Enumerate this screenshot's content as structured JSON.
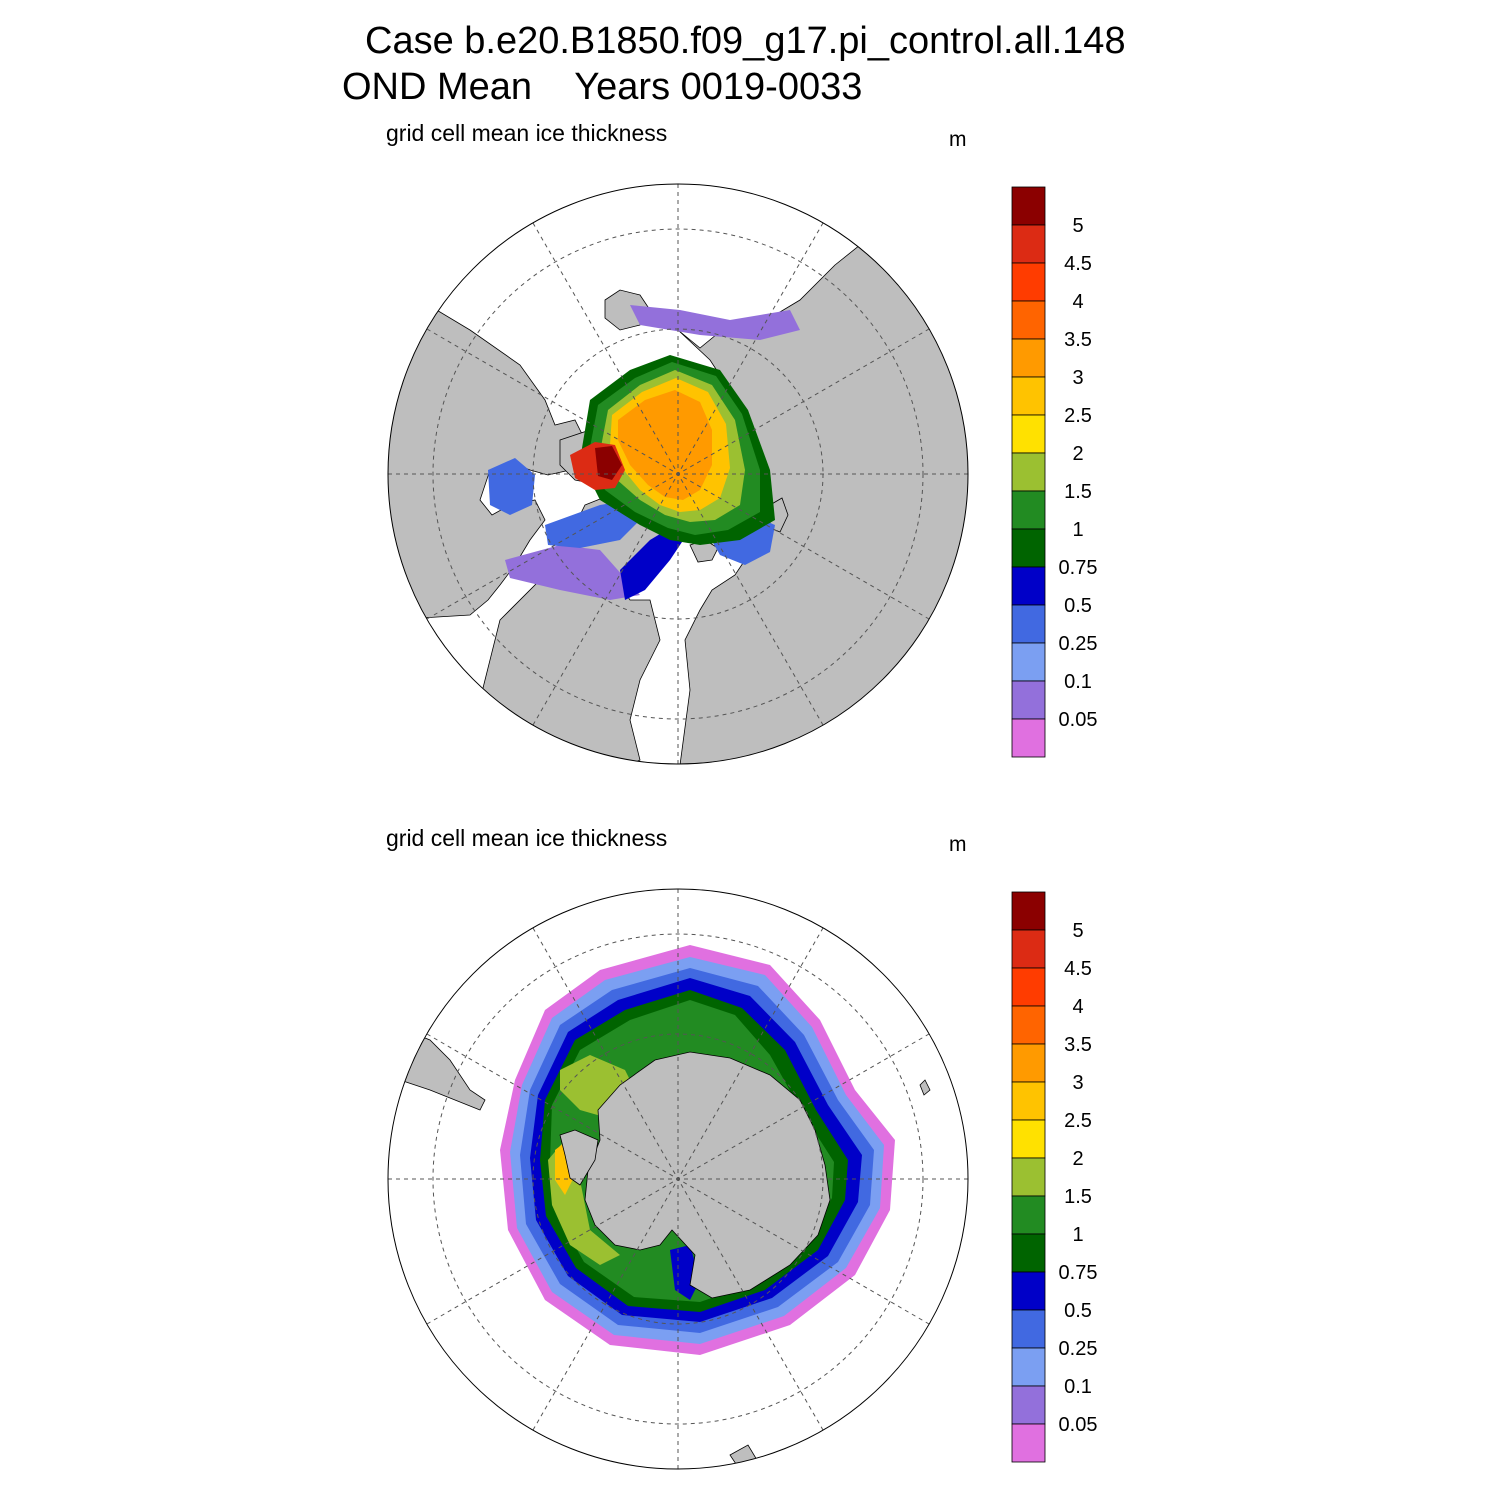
{
  "header": {
    "line1": "Case b.e20.B1850.f09_g17.pi_control.all.148",
    "line2_season": "OND Mean",
    "line2_years": "Years 0019-0033"
  },
  "colors": {
    "land": "#bebebe",
    "outside_ice": "#ffffff",
    "grid_line": "#555555"
  },
  "panels": [
    {
      "id": "north",
      "hemisphere": "Northern",
      "title": "grid cell mean ice thickness",
      "units": "m"
    },
    {
      "id": "south",
      "hemisphere": "Southern",
      "title": "grid cell mean ice thickness",
      "units": "m"
    }
  ],
  "colorbar": {
    "labels": [
      "5",
      "4.5",
      "4",
      "3.5",
      "3",
      "2.5",
      "2",
      "1.5",
      "1",
      "0.75",
      "0.5",
      "0.25",
      "0.1",
      "0.05"
    ],
    "colors": [
      "#8b0000",
      "#dc2b14",
      "#ff3c00",
      "#ff6400",
      "#ff9a00",
      "#ffc300",
      "#ffe100",
      "#9bc031",
      "#228b22",
      "#006400",
      "#0000c8",
      "#4169e1",
      "#7b9ff2",
      "#9370db",
      "#e070e0"
    ]
  }
}
